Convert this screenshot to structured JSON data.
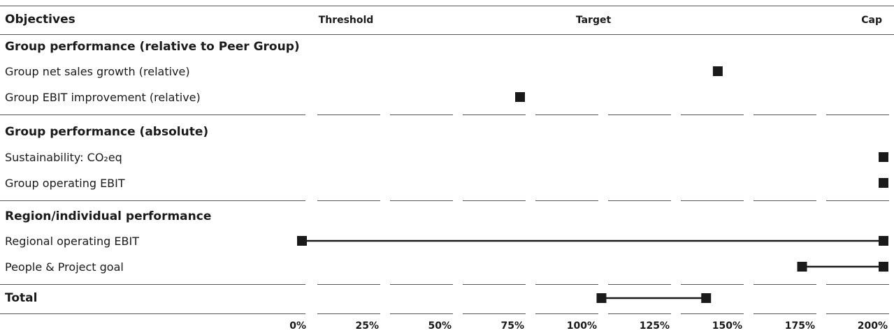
{
  "chart_data": {
    "type": "range-dot",
    "header": {
      "objectives": "Objectives",
      "threshold": "Threshold",
      "target": "Target",
      "cap": "Cap"
    },
    "x_ticks": [
      "0%",
      "25%",
      "50%",
      "75%",
      "100%",
      "125%",
      "150%",
      "175%",
      "200%"
    ],
    "xlim": [
      0,
      200
    ],
    "total": {
      "label": "Total",
      "range": [
        103,
        139
      ]
    },
    "groups": [
      {
        "title": "Group performance (relative to Peer Group)",
        "rows": [
          {
            "label": "Group net sales growth (relative)",
            "value": 143
          },
          {
            "label": "Group EBIT improvement (relative)",
            "value": 75
          }
        ]
      },
      {
        "title": "Group performance (absolute)",
        "rows": [
          {
            "label": "Sustainability: CO₂eq",
            "value": 200
          },
          {
            "label": "Group operating EBIT",
            "value": 200
          }
        ]
      },
      {
        "title": "Region/individual performance",
        "rows": [
          {
            "label": "Regional operating EBIT",
            "range": [
              0,
              200
            ]
          },
          {
            "label": "People & Project goal",
            "range": [
              172,
              200
            ]
          }
        ]
      }
    ]
  }
}
